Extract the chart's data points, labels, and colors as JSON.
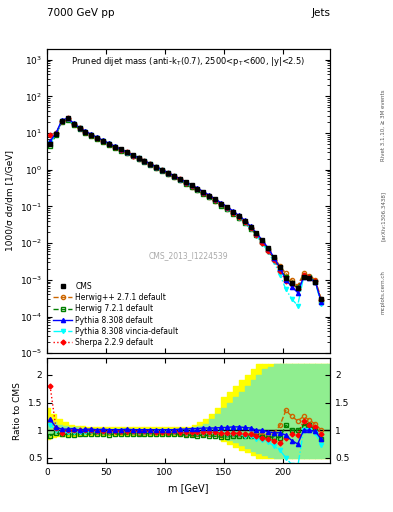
{
  "header_left": "7000 GeV pp",
  "header_right": "Jets",
  "ylabel_main": "1000/σ dσ/dm [1/GeV]",
  "ylabel_ratio": "Ratio to CMS",
  "xlabel": "m [GeV]",
  "watermark": "CMS_2013_I1224539",
  "cms_x": [
    2.5,
    7.5,
    12.5,
    17.5,
    22.5,
    27.5,
    32.5,
    37.5,
    42.5,
    47.5,
    52.5,
    57.5,
    62.5,
    67.5,
    72.5,
    77.5,
    82.5,
    87.5,
    92.5,
    97.5,
    102.5,
    107.5,
    112.5,
    117.5,
    122.5,
    127.5,
    132.5,
    137.5,
    142.5,
    147.5,
    152.5,
    157.5,
    162.5,
    167.5,
    172.5,
    177.5,
    182.5,
    187.5,
    192.5,
    197.5,
    202.5,
    207.5,
    212.5,
    217.5,
    222.5,
    227.5,
    232.5
  ],
  "cms_y": [
    5.0,
    9.5,
    22.0,
    25.0,
    18.0,
    14.0,
    11.0,
    9.0,
    7.5,
    6.2,
    5.2,
    4.3,
    3.6,
    3.0,
    2.5,
    2.1,
    1.75,
    1.45,
    1.2,
    1.0,
    0.83,
    0.68,
    0.56,
    0.46,
    0.375,
    0.305,
    0.245,
    0.195,
    0.155,
    0.12,
    0.094,
    0.072,
    0.054,
    0.04,
    0.028,
    0.019,
    0.012,
    0.0075,
    0.0042,
    0.0022,
    0.0011,
    0.0008,
    0.0006,
    0.0012,
    0.0011,
    0.0009,
    0.0003
  ],
  "herwig1_y": [
    5.8,
    9.8,
    21.5,
    24.5,
    17.5,
    13.5,
    10.8,
    8.8,
    7.3,
    6.0,
    5.0,
    4.2,
    3.5,
    2.9,
    2.4,
    2.0,
    1.7,
    1.4,
    1.15,
    0.96,
    0.79,
    0.65,
    0.53,
    0.43,
    0.35,
    0.285,
    0.23,
    0.183,
    0.144,
    0.11,
    0.087,
    0.067,
    0.05,
    0.037,
    0.026,
    0.018,
    0.011,
    0.007,
    0.004,
    0.0024,
    0.0015,
    0.001,
    0.0007,
    0.0015,
    0.0013,
    0.001,
    0.0003
  ],
  "herwig2_y": [
    4.5,
    9.0,
    20.5,
    23.0,
    16.5,
    13.0,
    10.2,
    8.4,
    7.0,
    5.8,
    4.8,
    4.0,
    3.35,
    2.8,
    2.35,
    1.97,
    1.65,
    1.36,
    1.12,
    0.93,
    0.77,
    0.63,
    0.52,
    0.42,
    0.34,
    0.275,
    0.222,
    0.176,
    0.138,
    0.105,
    0.083,
    0.064,
    0.048,
    0.036,
    0.025,
    0.017,
    0.0105,
    0.0065,
    0.0037,
    0.0019,
    0.0012,
    0.0008,
    0.0006,
    0.0013,
    0.0012,
    0.0009,
    0.00025
  ],
  "pythia1_y": [
    6.0,
    10.0,
    22.5,
    25.5,
    18.5,
    14.0,
    11.2,
    9.2,
    7.6,
    6.3,
    5.25,
    4.35,
    3.65,
    3.05,
    2.52,
    2.12,
    1.76,
    1.46,
    1.21,
    1.01,
    0.84,
    0.69,
    0.57,
    0.47,
    0.385,
    0.315,
    0.254,
    0.203,
    0.161,
    0.126,
    0.099,
    0.076,
    0.057,
    0.042,
    0.029,
    0.019,
    0.012,
    0.0073,
    0.004,
    0.0021,
    0.001,
    0.00065,
    0.00045,
    0.0012,
    0.0011,
    0.00088,
    0.00025
  ],
  "pythia2_y": [
    5.5,
    9.5,
    21.0,
    24.0,
    17.5,
    13.5,
    10.7,
    8.8,
    7.3,
    6.05,
    5.05,
    4.2,
    3.52,
    2.94,
    2.43,
    2.04,
    1.7,
    1.41,
    1.16,
    0.97,
    0.8,
    0.66,
    0.54,
    0.44,
    0.36,
    0.29,
    0.234,
    0.186,
    0.146,
    0.113,
    0.088,
    0.067,
    0.05,
    0.036,
    0.025,
    0.016,
    0.0098,
    0.0059,
    0.003,
    0.0014,
    0.00055,
    0.0003,
    0.0002,
    0.0012,
    0.0011,
    0.00085,
    0.00022
  ],
  "sherpa_y": [
    9.0,
    9.8,
    21.0,
    25.0,
    18.0,
    14.0,
    11.0,
    9.0,
    7.4,
    6.1,
    5.1,
    4.25,
    3.55,
    2.96,
    2.45,
    2.06,
    1.71,
    1.42,
    1.17,
    0.975,
    0.81,
    0.665,
    0.546,
    0.445,
    0.363,
    0.295,
    0.238,
    0.189,
    0.149,
    0.114,
    0.089,
    0.068,
    0.051,
    0.037,
    0.026,
    0.017,
    0.0104,
    0.0063,
    0.0034,
    0.0017,
    0.00095,
    0.00075,
    0.00055,
    0.0014,
    0.0012,
    0.00095,
    0.00028
  ],
  "ratio_herwig1": [
    1.16,
    1.03,
    0.98,
    0.98,
    0.97,
    0.96,
    0.98,
    0.98,
    0.97,
    0.97,
    0.96,
    0.98,
    0.97,
    0.97,
    0.96,
    0.95,
    0.97,
    0.97,
    0.96,
    0.96,
    0.95,
    0.96,
    0.95,
    0.93,
    0.93,
    0.93,
    0.94,
    0.94,
    0.93,
    0.92,
    0.93,
    0.93,
    0.93,
    0.925,
    0.93,
    0.95,
    0.92,
    0.93,
    0.95,
    1.09,
    1.36,
    1.25,
    1.17,
    1.25,
    1.18,
    1.11,
    1.0
  ],
  "ratio_herwig2": [
    0.9,
    0.95,
    0.93,
    0.92,
    0.92,
    0.93,
    0.93,
    0.93,
    0.93,
    0.94,
    0.92,
    0.93,
    0.93,
    0.93,
    0.94,
    0.94,
    0.94,
    0.94,
    0.93,
    0.93,
    0.93,
    0.93,
    0.93,
    0.91,
    0.91,
    0.9,
    0.91,
    0.9,
    0.89,
    0.875,
    0.883,
    0.889,
    0.889,
    0.9,
    0.893,
    0.895,
    0.875,
    0.867,
    0.881,
    0.864,
    1.09,
    1.0,
    1.0,
    1.083,
    1.09,
    1.0,
    0.833
  ],
  "ratio_pythia1": [
    1.2,
    1.05,
    1.02,
    1.02,
    1.03,
    1.0,
    1.02,
    1.02,
    1.01,
    1.02,
    1.01,
    1.01,
    1.01,
    1.02,
    1.01,
    1.01,
    1.01,
    1.01,
    1.01,
    1.01,
    1.01,
    1.01,
    1.02,
    1.02,
    1.03,
    1.03,
    1.04,
    1.04,
    1.04,
    1.05,
    1.05,
    1.06,
    1.06,
    1.05,
    1.04,
    1.0,
    1.0,
    0.973,
    0.952,
    0.955,
    0.909,
    0.813,
    0.75,
    1.0,
    1.0,
    0.978,
    0.833
  ],
  "ratio_pythia2": [
    1.1,
    1.0,
    0.955,
    0.96,
    0.972,
    0.964,
    0.973,
    0.978,
    0.973,
    0.976,
    0.971,
    0.977,
    0.978,
    0.98,
    0.972,
    0.971,
    0.971,
    0.972,
    0.967,
    0.97,
    0.964,
    0.971,
    0.964,
    0.957,
    0.96,
    0.951,
    0.955,
    0.954,
    0.942,
    0.942,
    0.936,
    0.931,
    0.926,
    0.9,
    0.893,
    0.842,
    0.817,
    0.787,
    0.714,
    0.636,
    0.5,
    0.375,
    0.333,
    1.0,
    1.0,
    0.944,
    0.733
  ],
  "ratio_sherpa": [
    1.8,
    1.032,
    0.955,
    1.0,
    1.0,
    1.0,
    1.0,
    1.0,
    0.987,
    0.984,
    0.981,
    0.988,
    0.986,
    0.987,
    0.98,
    0.981,
    0.977,
    0.979,
    0.975,
    0.975,
    0.976,
    0.978,
    0.975,
    0.967,
    0.968,
    0.967,
    0.971,
    0.969,
    0.961,
    0.95,
    0.947,
    0.944,
    0.944,
    0.925,
    0.929,
    0.895,
    0.867,
    0.84,
    0.81,
    0.773,
    0.864,
    0.938,
    0.917,
    1.167,
    1.09,
    1.056,
    0.933
  ],
  "band_yellow_x": [
    0,
    5,
    10,
    15,
    20,
    25,
    30,
    35,
    40,
    45,
    50,
    55,
    60,
    65,
    70,
    75,
    80,
    85,
    90,
    95,
    100,
    105,
    110,
    115,
    120,
    125,
    130,
    135,
    140,
    145,
    150,
    155,
    160,
    165,
    170,
    175,
    180,
    185,
    190,
    195,
    200,
    205,
    210,
    215,
    220,
    225,
    230,
    235,
    240
  ],
  "band_yellow_lo": [
    0.85,
    0.88,
    0.9,
    0.9,
    0.9,
    0.9,
    0.92,
    0.92,
    0.92,
    0.92,
    0.92,
    0.92,
    0.92,
    0.92,
    0.92,
    0.92,
    0.92,
    0.92,
    0.92,
    0.92,
    0.92,
    0.92,
    0.92,
    0.92,
    0.92,
    0.92,
    0.92,
    0.92,
    0.92,
    0.92,
    0.8,
    0.75,
    0.7,
    0.65,
    0.6,
    0.55,
    0.5,
    0.5,
    0.5,
    0.5,
    0.5,
    0.5,
    0.5,
    0.5,
    0.5,
    0.5,
    0.5,
    0.5,
    0.5
  ],
  "band_yellow_hi": [
    1.4,
    1.3,
    1.2,
    1.15,
    1.1,
    1.08,
    1.07,
    1.06,
    1.06,
    1.06,
    1.06,
    1.06,
    1.06,
    1.06,
    1.06,
    1.06,
    1.06,
    1.06,
    1.06,
    1.06,
    1.06,
    1.06,
    1.06,
    1.06,
    1.06,
    1.1,
    1.15,
    1.2,
    1.3,
    1.4,
    1.6,
    1.7,
    1.8,
    1.9,
    2.0,
    2.1,
    2.2,
    2.2,
    2.2,
    2.2,
    2.2,
    2.2,
    2.2,
    2.2,
    2.2,
    2.2,
    2.2,
    2.2,
    2.2
  ],
  "band_green_x": [
    0,
    5,
    10,
    15,
    20,
    25,
    30,
    35,
    40,
    45,
    50,
    55,
    60,
    65,
    70,
    75,
    80,
    85,
    90,
    95,
    100,
    105,
    110,
    115,
    120,
    125,
    130,
    135,
    140,
    145,
    150,
    155,
    160,
    165,
    170,
    175,
    180,
    185,
    190,
    195,
    200,
    205,
    210,
    215,
    220,
    225,
    230,
    235,
    240
  ],
  "band_green_lo": [
    0.9,
    0.93,
    0.95,
    0.95,
    0.95,
    0.95,
    0.95,
    0.95,
    0.95,
    0.95,
    0.95,
    0.95,
    0.95,
    0.95,
    0.95,
    0.95,
    0.95,
    0.95,
    0.95,
    0.95,
    0.95,
    0.95,
    0.95,
    0.95,
    0.95,
    0.95,
    0.95,
    0.95,
    0.95,
    0.95,
    0.88,
    0.83,
    0.78,
    0.73,
    0.68,
    0.63,
    0.58,
    0.55,
    0.52,
    0.5,
    0.5,
    0.5,
    0.5,
    0.5,
    0.5,
    0.5,
    0.5,
    0.5,
    0.5
  ],
  "band_green_hi": [
    1.2,
    1.15,
    1.1,
    1.08,
    1.06,
    1.05,
    1.04,
    1.03,
    1.03,
    1.03,
    1.03,
    1.03,
    1.03,
    1.03,
    1.03,
    1.03,
    1.03,
    1.03,
    1.03,
    1.03,
    1.03,
    1.03,
    1.03,
    1.03,
    1.03,
    1.05,
    1.08,
    1.12,
    1.2,
    1.3,
    1.4,
    1.5,
    1.6,
    1.7,
    1.8,
    1.9,
    2.0,
    2.1,
    2.15,
    2.2,
    2.2,
    2.2,
    2.2,
    2.2,
    2.2,
    2.2,
    2.2,
    2.2,
    2.2
  ],
  "ylim_main": [
    1e-05,
    2000
  ],
  "ylim_ratio": [
    0.4,
    2.3
  ],
  "xlim": [
    0,
    240
  ]
}
